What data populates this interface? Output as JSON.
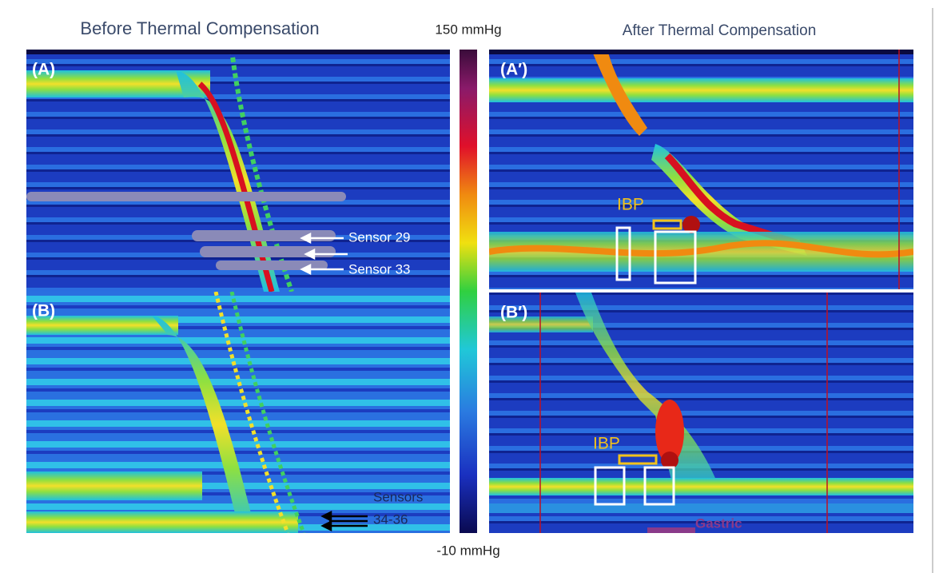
{
  "header": {
    "left_title": "Before Thermal Compensation",
    "right_title": "After Thermal Compensation"
  },
  "colorbar": {
    "max_label": "150 mmHg",
    "min_label": "-10 mmHg"
  },
  "panels": [
    {
      "label": "(A)",
      "annotations": [
        "Sensor 29",
        "Sensor 33"
      ]
    },
    {
      "label": "(B)",
      "annotations": [
        "Sensors",
        "34-36"
      ]
    },
    {
      "label": "(A′)",
      "annotations": [
        "IBP"
      ]
    },
    {
      "label": "(B′)",
      "annotations": [
        "IBP",
        "Gastric"
      ]
    }
  ]
}
